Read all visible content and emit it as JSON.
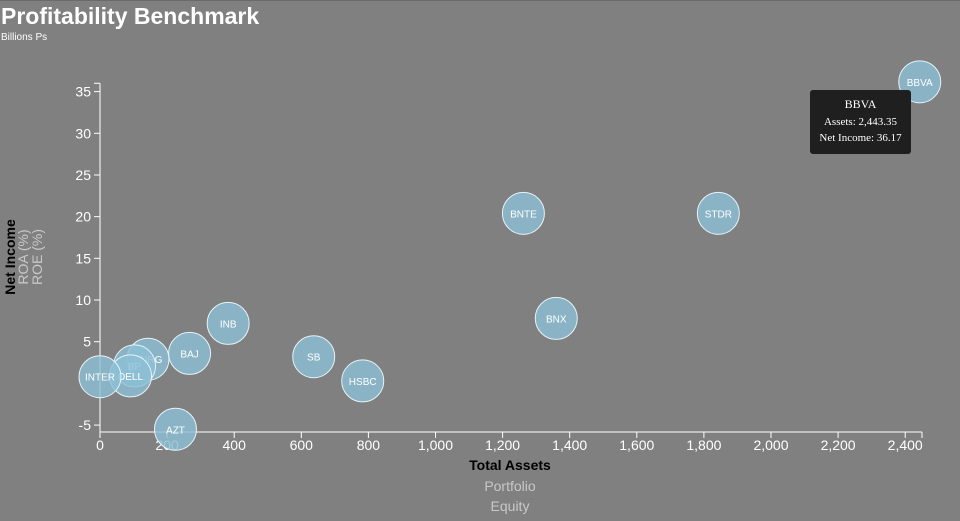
{
  "header": {
    "title": "Profitability Benchmark",
    "subtitle": "Billions Ps"
  },
  "colors": {
    "background": "#808080",
    "bubble": "#8cbfd6",
    "tooltip": "#1f1f1f"
  },
  "chart_data": {
    "type": "scatter",
    "xlabel": "Total Assets",
    "ylabel": "Net Income",
    "x_alternatives": [
      "Portfolio",
      "Equity"
    ],
    "y_alternatives": [
      "ROA (%)",
      "ROE (%)"
    ],
    "xlim": [
      0,
      2450
    ],
    "ylim": [
      -6,
      36
    ],
    "x_ticks": [
      0,
      200,
      400,
      600,
      800,
      1000,
      1200,
      1400,
      1600,
      1800,
      2000,
      2200,
      2400
    ],
    "x_tick_labels": [
      "0",
      "200",
      "400",
      "600",
      "800",
      "1,000",
      "1,200",
      "1,400",
      "1,600",
      "1,800",
      "2,000",
      "2,200",
      "2,400"
    ],
    "y_ticks": [
      -5,
      5,
      10,
      15,
      20,
      25,
      30,
      35
    ],
    "y_tick_labels": [
      "-5",
      "5",
      "10",
      "15",
      "20",
      "25",
      "30",
      "35"
    ],
    "grid": false,
    "points": [
      {
        "label": "BBVA",
        "x": 2443.35,
        "y": 36.17
      },
      {
        "label": "STDR",
        "x": 1843,
        "y": 20.4
      },
      {
        "label": "BNTE",
        "x": 1262,
        "y": 20.4
      },
      {
        "label": "BNX",
        "x": 1360,
        "y": 7.8
      },
      {
        "label": "HSBC",
        "x": 783,
        "y": 0.3
      },
      {
        "label": "SB",
        "x": 637,
        "y": 3.2
      },
      {
        "label": "INB",
        "x": 382,
        "y": 7.2
      },
      {
        "label": "BAJ",
        "x": 267,
        "y": 3.6
      },
      {
        "label": "AZT",
        "x": 225,
        "y": -5.5
      },
      {
        "label": "BNRG",
        "x": 143,
        "y": 2.9
      },
      {
        "label": "BP",
        "x": 103,
        "y": 2.1
      },
      {
        "label": "DELL",
        "x": 91,
        "y": 0.9
      },
      {
        "label": "INTER",
        "x": 0,
        "y": 0.8
      }
    ]
  },
  "tooltip": {
    "name": "BBVA",
    "assets_text": "Assets: 2,443.35",
    "income_text": "Net Income: 36.17"
  }
}
